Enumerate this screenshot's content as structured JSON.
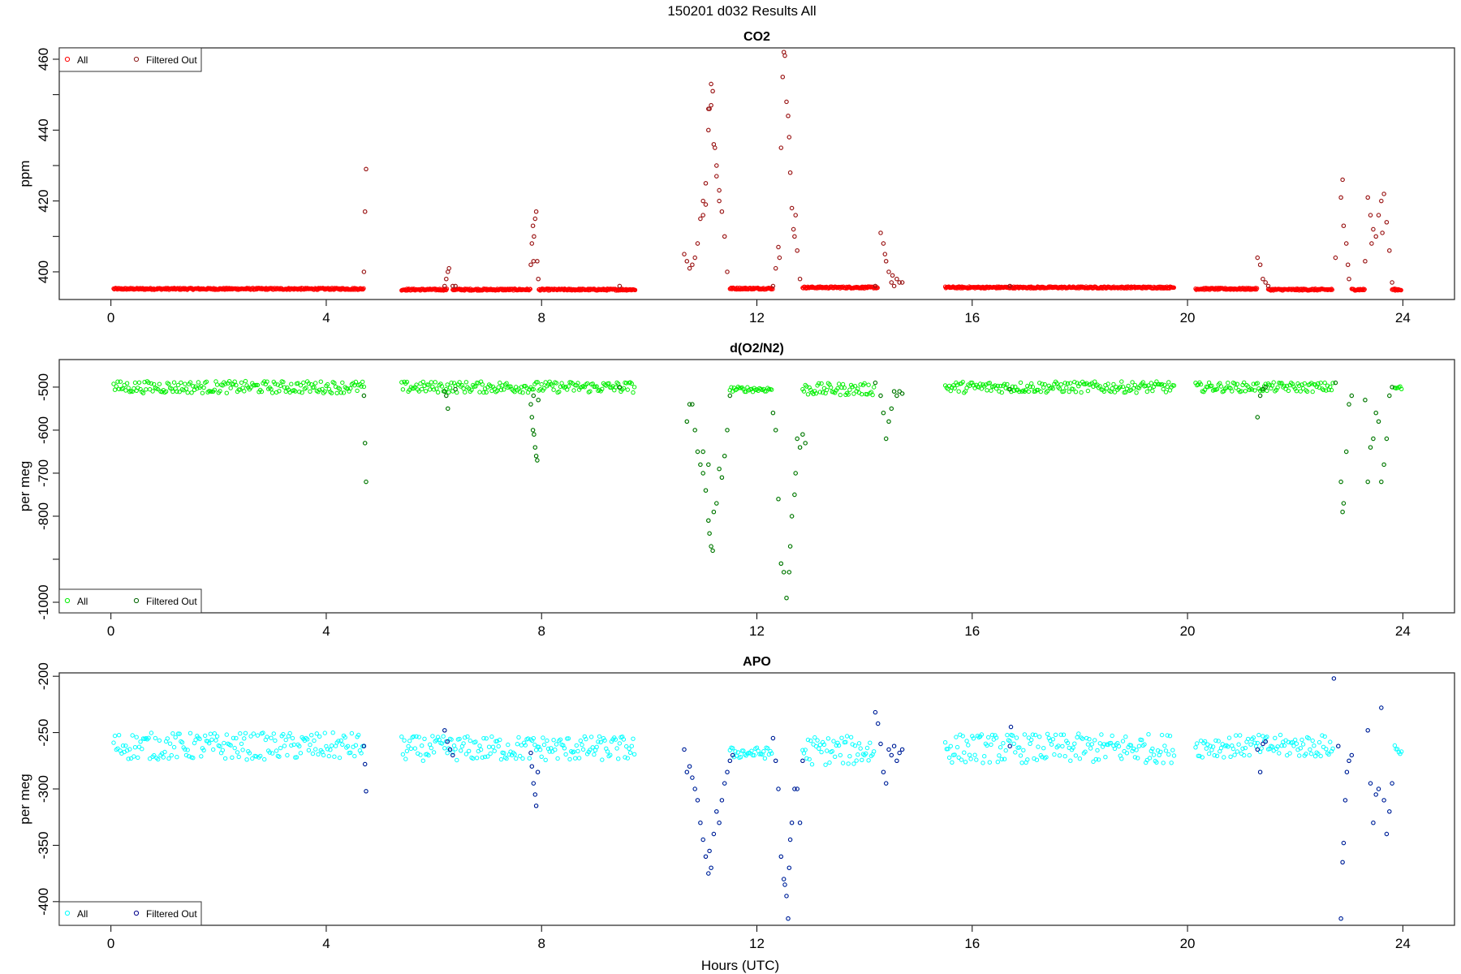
{
  "main_title": "150201   d032   Results All",
  "xlabel": "Hours (UTC)",
  "chart_data": [
    {
      "type": "scatter",
      "title": "CO2",
      "ylabel": "ppm",
      "xlim": [
        -0.96,
        24.96
      ],
      "ylim": [
        392.2,
        463.2
      ],
      "xticks": [
        0,
        4,
        8,
        12,
        16,
        20,
        24
      ],
      "yticks": [
        400,
        410,
        420,
        430,
        440,
        450,
        460
      ],
      "ytick_labels": {
        "400": "400",
        "420": "420",
        "440": "440",
        "460": "460"
      },
      "legend": {
        "placement": "top-left",
        "entries": [
          "All",
          "Filtered Out"
        ]
      },
      "colors": {
        "all": "#ff0000",
        "filtered": "#8b1a1a"
      },
      "baseline_segments": [
        [
          0.05,
          4.7,
          395.2,
          0.25
        ],
        [
          5.4,
          6.25,
          395.0,
          0.25
        ],
        [
          6.35,
          7.8,
          395.0,
          0.25
        ],
        [
          7.95,
          9.75,
          395.0,
          0.25
        ],
        [
          11.5,
          12.3,
          395.3,
          0.25
        ],
        [
          12.85,
          14.25,
          395.6,
          0.25
        ],
        [
          15.5,
          19.75,
          395.6,
          0.25
        ],
        [
          20.15,
          21.3,
          395.2,
          0.25
        ],
        [
          21.5,
          22.7,
          395.0,
          0.25
        ],
        [
          23.05,
          23.3,
          395.0,
          0.25
        ],
        [
          23.8,
          23.98,
          395.0,
          0.25
        ]
      ],
      "baseline_step": 0.012,
      "filtered_points": [
        [
          4.7,
          400
        ],
        [
          4.72,
          417
        ],
        [
          4.74,
          429
        ],
        [
          6.2,
          396
        ],
        [
          6.23,
          398
        ],
        [
          6.26,
          400
        ],
        [
          6.28,
          401
        ],
        [
          6.35,
          396
        ],
        [
          6.4,
          396
        ],
        [
          7.8,
          402
        ],
        [
          7.82,
          408
        ],
        [
          7.84,
          413
        ],
        [
          7.86,
          410
        ],
        [
          7.88,
          415
        ],
        [
          7.9,
          417
        ],
        [
          7.85,
          403
        ],
        [
          7.92,
          403
        ],
        [
          7.94,
          398
        ],
        [
          9.45,
          396
        ],
        [
          10.65,
          405
        ],
        [
          10.7,
          403
        ],
        [
          10.75,
          401
        ],
        [
          10.8,
          402
        ],
        [
          10.85,
          404
        ],
        [
          10.9,
          408
        ],
        [
          10.95,
          415
        ],
        [
          11.0,
          420
        ],
        [
          11.05,
          425
        ],
        [
          11.1,
          440
        ],
        [
          11.12,
          446
        ],
        [
          11.15,
          453
        ],
        [
          11.18,
          451
        ],
        [
          11.2,
          436
        ],
        [
          11.25,
          430
        ],
        [
          11.3,
          423
        ],
        [
          11.35,
          417
        ],
        [
          11.4,
          410
        ],
        [
          11.45,
          400
        ],
        [
          11.0,
          416
        ],
        [
          11.05,
          419
        ],
        [
          11.15,
          447
        ],
        [
          11.1,
          446
        ],
        [
          11.25,
          427
        ],
        [
          11.3,
          420
        ],
        [
          11.22,
          435
        ],
        [
          12.3,
          396
        ],
        [
          12.35,
          401
        ],
        [
          12.4,
          407
        ],
        [
          12.45,
          435
        ],
        [
          12.48,
          455
        ],
        [
          12.5,
          462
        ],
        [
          12.52,
          461
        ],
        [
          12.55,
          448
        ],
        [
          12.58,
          444
        ],
        [
          12.6,
          438
        ],
        [
          12.62,
          428
        ],
        [
          12.65,
          418
        ],
        [
          12.68,
          412
        ],
        [
          12.7,
          410
        ],
        [
          12.72,
          416
        ],
        [
          12.75,
          406
        ],
        [
          12.8,
          398
        ],
        [
          12.42,
          404
        ],
        [
          14.2,
          396
        ],
        [
          14.3,
          411
        ],
        [
          14.35,
          408
        ],
        [
          14.38,
          405
        ],
        [
          14.4,
          403
        ],
        [
          14.45,
          400
        ],
        [
          14.5,
          397
        ],
        [
          14.55,
          396
        ],
        [
          14.6,
          398
        ],
        [
          14.65,
          397
        ],
        [
          14.7,
          397
        ],
        [
          14.52,
          399
        ],
        [
          16.7,
          396
        ],
        [
          21.3,
          404
        ],
        [
          21.35,
          402
        ],
        [
          21.4,
          398
        ],
        [
          21.45,
          397
        ],
        [
          21.5,
          396
        ],
        [
          22.75,
          404
        ],
        [
          22.85,
          421
        ],
        [
          22.88,
          426
        ],
        [
          22.9,
          413
        ],
        [
          22.95,
          408
        ],
        [
          22.98,
          402
        ],
        [
          23.0,
          398
        ],
        [
          23.3,
          403
        ],
        [
          23.35,
          421
        ],
        [
          23.4,
          416
        ],
        [
          23.45,
          412
        ],
        [
          23.5,
          410
        ],
        [
          23.55,
          416
        ],
        [
          23.6,
          420
        ],
        [
          23.65,
          422
        ],
        [
          23.7,
          414
        ],
        [
          23.75,
          406
        ],
        [
          23.8,
          397
        ],
        [
          23.42,
          408
        ],
        [
          23.62,
          411
        ]
      ]
    },
    {
      "type": "scatter",
      "title": "d(O2/N2)",
      "ylabel": "per meg",
      "xlim": [
        -0.96,
        24.96
      ],
      "ylim": [
        -1024.5,
        -436
      ],
      "xticks": [
        0,
        4,
        8,
        12,
        16,
        20,
        24
      ],
      "yticks": [
        -500,
        -600,
        -700,
        -800,
        -900,
        -1000
      ],
      "ytick_labels": {
        "-500": "-500",
        "-600": "-600",
        "-700": "-700",
        "-800": "-800",
        "-1000": "-1000"
      },
      "legend": {
        "placement": "bottom-left",
        "entries": [
          "All",
          "Filtered Out"
        ]
      },
      "colors": {
        "all": "#00ee00",
        "filtered": "#006400"
      },
      "baseline_segments": [
        [
          0.05,
          4.7,
          -500,
          14
        ],
        [
          5.4,
          9.75,
          -500,
          13
        ],
        [
          11.5,
          12.3,
          -505,
          6
        ],
        [
          12.85,
          14.2,
          -505,
          14
        ],
        [
          15.5,
          19.75,
          -500,
          13
        ],
        [
          20.15,
          22.7,
          -500,
          11
        ],
        [
          23.85,
          23.98,
          -502,
          6
        ]
      ],
      "baseline_step": 0.025,
      "filtered_points": [
        [
          4.7,
          -520
        ],
        [
          4.72,
          -630
        ],
        [
          4.74,
          -720
        ],
        [
          6.2,
          -510
        ],
        [
          6.23,
          -520
        ],
        [
          6.26,
          -550
        ],
        [
          6.4,
          -505
        ],
        [
          7.8,
          -540
        ],
        [
          7.82,
          -570
        ],
        [
          7.84,
          -600
        ],
        [
          7.86,
          -610
        ],
        [
          7.88,
          -640
        ],
        [
          7.9,
          -660
        ],
        [
          7.92,
          -670
        ],
        [
          7.85,
          -520
        ],
        [
          7.94,
          -530
        ],
        [
          9.45,
          -500
        ],
        [
          10.7,
          -580
        ],
        [
          10.75,
          -540
        ],
        [
          10.8,
          -540
        ],
        [
          10.85,
          -600
        ],
        [
          10.9,
          -650
        ],
        [
          10.95,
          -680
        ],
        [
          11.0,
          -700
        ],
        [
          11.05,
          -740
        ],
        [
          11.1,
          -810
        ],
        [
          11.12,
          -840
        ],
        [
          11.15,
          -870
        ],
        [
          11.18,
          -880
        ],
        [
          11.2,
          -790
        ],
        [
          11.25,
          -770
        ],
        [
          11.3,
          -690
        ],
        [
          11.35,
          -710
        ],
        [
          11.4,
          -660
        ],
        [
          11.45,
          -600
        ],
        [
          11.5,
          -520
        ],
        [
          11.0,
          -650
        ],
        [
          11.1,
          -680
        ],
        [
          12.3,
          -560
        ],
        [
          12.35,
          -600
        ],
        [
          12.4,
          -760
        ],
        [
          12.45,
          -910
        ],
        [
          12.5,
          -930
        ],
        [
          12.55,
          -990
        ],
        [
          12.6,
          -930
        ],
        [
          12.62,
          -870
        ],
        [
          12.65,
          -800
        ],
        [
          12.7,
          -750
        ],
        [
          12.72,
          -700
        ],
        [
          12.75,
          -620
        ],
        [
          12.8,
          -640
        ],
        [
          12.85,
          -610
        ],
        [
          12.9,
          -630
        ],
        [
          14.2,
          -490
        ],
        [
          14.3,
          -520
        ],
        [
          14.35,
          -560
        ],
        [
          14.4,
          -620
        ],
        [
          14.45,
          -580
        ],
        [
          14.5,
          -550
        ],
        [
          14.55,
          -510
        ],
        [
          14.6,
          -520
        ],
        [
          14.65,
          -510
        ],
        [
          14.7,
          -515
        ],
        [
          16.7,
          -505
        ],
        [
          21.3,
          -570
        ],
        [
          21.35,
          -520
        ],
        [
          21.4,
          -505
        ],
        [
          21.45,
          -500
        ],
        [
          22.75,
          -490
        ],
        [
          22.85,
          -720
        ],
        [
          22.88,
          -790
        ],
        [
          22.9,
          -770
        ],
        [
          22.95,
          -650
        ],
        [
          23.0,
          -540
        ],
        [
          23.05,
          -520
        ],
        [
          23.3,
          -530
        ],
        [
          23.35,
          -720
        ],
        [
          23.4,
          -640
        ],
        [
          23.45,
          -620
        ],
        [
          23.5,
          -560
        ],
        [
          23.55,
          -580
        ],
        [
          23.6,
          -720
        ],
        [
          23.65,
          -680
        ],
        [
          23.7,
          -620
        ],
        [
          23.75,
          -520
        ],
        [
          23.8,
          -500
        ]
      ]
    },
    {
      "type": "scatter",
      "title": "APO",
      "ylabel": "per meg",
      "xlim": [
        -0.96,
        24.96
      ],
      "ylim": [
        -421,
        -197
      ],
      "xticks": [
        0,
        4,
        8,
        12,
        16,
        20,
        24
      ],
      "yticks": [
        -200,
        -250,
        -300,
        -350,
        -400
      ],
      "ytick_labels": {
        "-200": "-200",
        "-250": "-250",
        "-300": "-300",
        "-350": "-350",
        "-400": "-400"
      },
      "legend": {
        "placement": "bottom-left",
        "entries": [
          "All",
          "Filtered Out"
        ]
      },
      "colors": {
        "all": "#00ffff",
        "filtered": "#00008b"
      },
      "baseline_segments": [
        [
          0.05,
          4.7,
          -262,
          12
        ],
        [
          5.4,
          9.75,
          -264,
          11
        ],
        [
          11.5,
          12.3,
          -268,
          5
        ],
        [
          12.85,
          14.2,
          -266,
          13
        ],
        [
          15.5,
          19.75,
          -264,
          13
        ],
        [
          20.15,
          22.7,
          -262,
          10
        ],
        [
          23.85,
          23.98,
          -265,
          6
        ]
      ],
      "baseline_step": 0.025,
      "filtered_points": [
        [
          4.7,
          -262
        ],
        [
          4.72,
          -278
        ],
        [
          4.74,
          -302
        ],
        [
          6.2,
          -248
        ],
        [
          6.25,
          -258
        ],
        [
          6.3,
          -265
        ],
        [
          6.35,
          -270
        ],
        [
          7.8,
          -268
        ],
        [
          7.82,
          -280
        ],
        [
          7.85,
          -295
        ],
        [
          7.88,
          -305
        ],
        [
          7.9,
          -315
        ],
        [
          7.93,
          -285
        ],
        [
          10.65,
          -265
        ],
        [
          10.7,
          -285
        ],
        [
          10.75,
          -280
        ],
        [
          10.8,
          -290
        ],
        [
          10.85,
          -300
        ],
        [
          10.9,
          -310
        ],
        [
          10.95,
          -330
        ],
        [
          11.0,
          -345
        ],
        [
          11.05,
          -360
        ],
        [
          11.1,
          -375
        ],
        [
          11.12,
          -355
        ],
        [
          11.15,
          -370
        ],
        [
          11.2,
          -340
        ],
        [
          11.25,
          -320
        ],
        [
          11.3,
          -330
        ],
        [
          11.35,
          -310
        ],
        [
          11.4,
          -295
        ],
        [
          11.45,
          -285
        ],
        [
          11.5,
          -275
        ],
        [
          11.55,
          -270
        ],
        [
          12.3,
          -255
        ],
        [
          12.35,
          -275
        ],
        [
          12.4,
          -300
        ],
        [
          12.45,
          -360
        ],
        [
          12.5,
          -380
        ],
        [
          12.52,
          -385
        ],
        [
          12.55,
          -395
        ],
        [
          12.58,
          -415
        ],
        [
          12.6,
          -370
        ],
        [
          12.62,
          -345
        ],
        [
          12.65,
          -330
        ],
        [
          12.7,
          -300
        ],
        [
          12.75,
          -300
        ],
        [
          12.8,
          -330
        ],
        [
          12.85,
          -275
        ],
        [
          14.2,
          -232
        ],
        [
          14.25,
          -242
        ],
        [
          14.3,
          -260
        ],
        [
          14.35,
          -285
        ],
        [
          14.4,
          -295
        ],
        [
          14.45,
          -265
        ],
        [
          14.5,
          -270
        ],
        [
          14.55,
          -262
        ],
        [
          14.6,
          -275
        ],
        [
          14.65,
          -268
        ],
        [
          14.7,
          -265
        ],
        [
          16.7,
          -262
        ],
        [
          16.72,
          -245
        ],
        [
          21.3,
          -265
        ],
        [
          21.35,
          -285
        ],
        [
          21.4,
          -260
        ],
        [
          21.45,
          -258
        ],
        [
          22.72,
          -202
        ],
        [
          22.8,
          -262
        ],
        [
          22.85,
          -415
        ],
        [
          22.88,
          -365
        ],
        [
          22.9,
          -348
        ],
        [
          22.93,
          -310
        ],
        [
          22.96,
          -285
        ],
        [
          23.0,
          -275
        ],
        [
          23.05,
          -270
        ],
        [
          23.35,
          -248
        ],
        [
          23.4,
          -295
        ],
        [
          23.45,
          -330
        ],
        [
          23.5,
          -305
        ],
        [
          23.55,
          -300
        ],
        [
          23.6,
          -228
        ],
        [
          23.65,
          -310
        ],
        [
          23.7,
          -340
        ],
        [
          23.75,
          -320
        ],
        [
          23.8,
          -295
        ]
      ]
    }
  ]
}
